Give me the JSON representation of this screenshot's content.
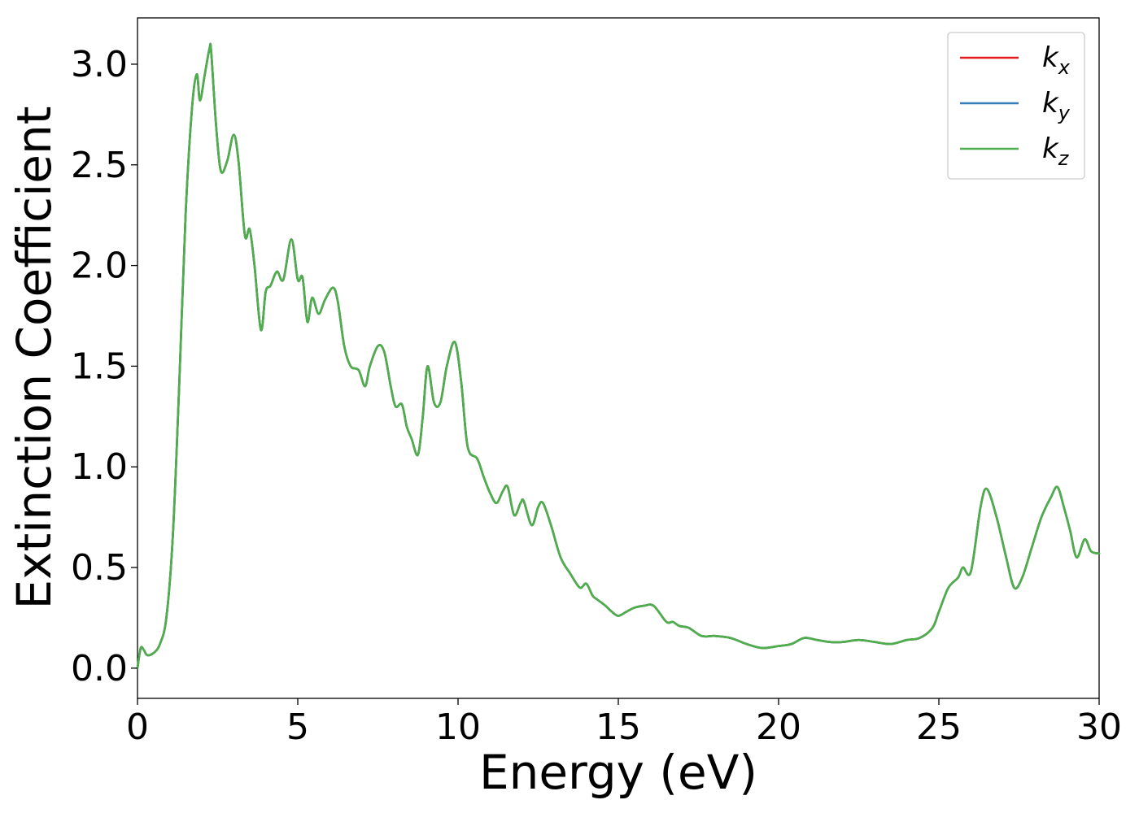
{
  "chart_data": {
    "type": "line",
    "xlabel": "Energy (eV)",
    "ylabel": "Extinction Coefficient",
    "xlim": [
      0,
      30
    ],
    "ylim": [
      -0.15,
      3.23
    ],
    "xticks": [
      0,
      5,
      10,
      15,
      20,
      25,
      30
    ],
    "xtick_labels": [
      "0",
      "5",
      "10",
      "15",
      "20",
      "25",
      "30"
    ],
    "yticks": [
      0.0,
      0.5,
      1.0,
      1.5,
      2.0,
      2.5,
      3.0
    ],
    "ytick_labels": [
      "0.0",
      "0.5",
      "1.0",
      "1.5",
      "2.0",
      "2.5",
      "3.0"
    ],
    "grid": false,
    "legend_position": "top-right",
    "x": [
      0,
      0.1,
      0.2,
      0.3,
      0.5,
      0.7,
      0.9,
      1.1,
      1.3,
      1.5,
      1.7,
      1.85,
      1.95,
      2.1,
      2.25,
      2.3,
      2.45,
      2.6,
      2.8,
      3.0,
      3.15,
      3.35,
      3.5,
      3.65,
      3.85,
      4.0,
      4.15,
      4.35,
      4.55,
      4.8,
      5.0,
      5.15,
      5.3,
      5.45,
      5.65,
      5.85,
      6.1,
      6.25,
      6.45,
      6.65,
      6.9,
      7.1,
      7.25,
      7.5,
      7.7,
      7.9,
      8.05,
      8.25,
      8.4,
      8.55,
      8.75,
      8.9,
      9.05,
      9.25,
      9.45,
      9.65,
      9.9,
      10.1,
      10.3,
      10.6,
      10.8,
      11.0,
      11.2,
      11.4,
      11.55,
      11.75,
      11.95,
      12.05,
      12.3,
      12.5,
      12.65,
      12.9,
      13.2,
      13.5,
      13.8,
      14.0,
      14.2,
      14.35,
      14.6,
      14.8,
      15.0,
      15.25,
      15.5,
      15.8,
      16.1,
      16.5,
      16.7,
      16.9,
      17.2,
      17.6,
      18.0,
      18.5,
      19.0,
      19.5,
      20.0,
      20.4,
      20.8,
      21.2,
      21.6,
      22.0,
      22.5,
      23.0,
      23.5,
      24.0,
      24.4,
      24.8,
      25.0,
      25.3,
      25.6,
      25.75,
      26.0,
      26.3,
      26.5,
      26.8,
      27.1,
      27.35,
      27.6,
      27.9,
      28.2,
      28.5,
      28.7,
      28.9,
      29.1,
      29.3,
      29.55,
      29.75,
      30.0
    ],
    "series": [
      {
        "name": "k_x",
        "legend_base": "k",
        "legend_sub": "x",
        "color": "#e41a1c",
        "values": [
          0.0,
          0.1,
          0.09,
          0.065,
          0.075,
          0.12,
          0.25,
          0.65,
          1.4,
          2.25,
          2.78,
          2.95,
          2.82,
          2.95,
          3.08,
          3.06,
          2.7,
          2.47,
          2.52,
          2.65,
          2.52,
          2.15,
          2.18,
          2.0,
          1.68,
          1.87,
          1.9,
          1.97,
          1.93,
          2.13,
          1.93,
          1.94,
          1.72,
          1.84,
          1.76,
          1.83,
          1.89,
          1.82,
          1.6,
          1.5,
          1.48,
          1.4,
          1.5,
          1.6,
          1.57,
          1.4,
          1.3,
          1.31,
          1.2,
          1.14,
          1.06,
          1.25,
          1.5,
          1.32,
          1.32,
          1.5,
          1.62,
          1.42,
          1.1,
          1.04,
          0.95,
          0.87,
          0.82,
          0.88,
          0.9,
          0.76,
          0.82,
          0.83,
          0.71,
          0.8,
          0.82,
          0.71,
          0.55,
          0.47,
          0.4,
          0.42,
          0.36,
          0.34,
          0.31,
          0.28,
          0.26,
          0.28,
          0.3,
          0.31,
          0.31,
          0.23,
          0.23,
          0.21,
          0.2,
          0.16,
          0.16,
          0.15,
          0.12,
          0.1,
          0.11,
          0.12,
          0.15,
          0.14,
          0.13,
          0.13,
          0.14,
          0.13,
          0.12,
          0.14,
          0.15,
          0.2,
          0.28,
          0.4,
          0.45,
          0.5,
          0.48,
          0.8,
          0.89,
          0.75,
          0.55,
          0.4,
          0.45,
          0.6,
          0.75,
          0.85,
          0.9,
          0.8,
          0.68,
          0.55,
          0.64,
          0.58,
          0.57
        ]
      },
      {
        "name": "k_y",
        "legend_base": "k",
        "legend_sub": "y",
        "color": "#377eb8",
        "values": [
          0.0,
          0.1,
          0.09,
          0.065,
          0.075,
          0.12,
          0.25,
          0.65,
          1.4,
          2.25,
          2.78,
          2.95,
          2.82,
          2.95,
          3.08,
          3.06,
          2.7,
          2.47,
          2.52,
          2.65,
          2.52,
          2.15,
          2.18,
          2.0,
          1.68,
          1.87,
          1.9,
          1.97,
          1.93,
          2.13,
          1.93,
          1.94,
          1.72,
          1.84,
          1.76,
          1.83,
          1.89,
          1.82,
          1.6,
          1.5,
          1.48,
          1.4,
          1.5,
          1.6,
          1.57,
          1.4,
          1.3,
          1.31,
          1.2,
          1.14,
          1.06,
          1.25,
          1.5,
          1.32,
          1.32,
          1.5,
          1.62,
          1.42,
          1.1,
          1.04,
          0.95,
          0.87,
          0.82,
          0.88,
          0.9,
          0.76,
          0.82,
          0.83,
          0.71,
          0.8,
          0.82,
          0.71,
          0.55,
          0.47,
          0.4,
          0.42,
          0.36,
          0.34,
          0.31,
          0.28,
          0.26,
          0.28,
          0.3,
          0.31,
          0.31,
          0.23,
          0.23,
          0.21,
          0.2,
          0.16,
          0.16,
          0.15,
          0.12,
          0.1,
          0.11,
          0.12,
          0.15,
          0.14,
          0.13,
          0.13,
          0.14,
          0.13,
          0.12,
          0.14,
          0.15,
          0.2,
          0.28,
          0.4,
          0.45,
          0.5,
          0.48,
          0.8,
          0.89,
          0.75,
          0.55,
          0.4,
          0.45,
          0.6,
          0.75,
          0.85,
          0.9,
          0.8,
          0.68,
          0.55,
          0.64,
          0.58,
          0.57
        ]
      },
      {
        "name": "k_z",
        "legend_base": "k",
        "legend_sub": "z",
        "color": "#4daf4a",
        "values": [
          0.0,
          0.1,
          0.09,
          0.065,
          0.075,
          0.12,
          0.25,
          0.65,
          1.4,
          2.25,
          2.78,
          2.95,
          2.82,
          2.95,
          3.08,
          3.06,
          2.7,
          2.47,
          2.52,
          2.65,
          2.52,
          2.15,
          2.18,
          2.0,
          1.68,
          1.87,
          1.9,
          1.97,
          1.93,
          2.13,
          1.93,
          1.94,
          1.72,
          1.84,
          1.76,
          1.83,
          1.89,
          1.82,
          1.6,
          1.5,
          1.48,
          1.4,
          1.5,
          1.6,
          1.57,
          1.4,
          1.3,
          1.31,
          1.2,
          1.14,
          1.06,
          1.25,
          1.5,
          1.32,
          1.32,
          1.5,
          1.62,
          1.42,
          1.1,
          1.04,
          0.95,
          0.87,
          0.82,
          0.88,
          0.9,
          0.76,
          0.82,
          0.83,
          0.71,
          0.8,
          0.82,
          0.71,
          0.55,
          0.47,
          0.4,
          0.42,
          0.36,
          0.34,
          0.31,
          0.28,
          0.26,
          0.28,
          0.3,
          0.31,
          0.31,
          0.23,
          0.23,
          0.21,
          0.2,
          0.16,
          0.16,
          0.15,
          0.12,
          0.1,
          0.11,
          0.12,
          0.15,
          0.14,
          0.13,
          0.13,
          0.14,
          0.13,
          0.12,
          0.14,
          0.15,
          0.2,
          0.28,
          0.4,
          0.45,
          0.5,
          0.48,
          0.8,
          0.89,
          0.75,
          0.55,
          0.4,
          0.45,
          0.6,
          0.75,
          0.85,
          0.9,
          0.8,
          0.68,
          0.55,
          0.64,
          0.58,
          0.57
        ]
      }
    ]
  }
}
